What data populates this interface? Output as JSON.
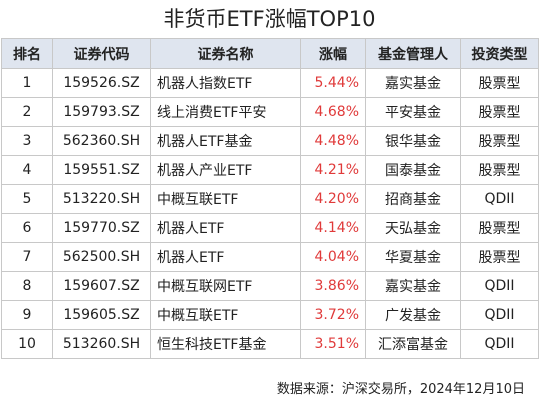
{
  "header": {
    "title": "非货币ETF涨幅TOP10"
  },
  "table": {
    "columns": [
      "排名",
      "证券代码",
      "证券名称",
      "涨幅",
      "基金管理人",
      "投资类型"
    ],
    "rows": [
      [
        "1",
        "159526.SZ",
        "机器人指数ETF",
        "5.44%",
        "嘉实基金",
        "股票型"
      ],
      [
        "2",
        "159793.SZ",
        "线上消费ETF平安",
        "4.68%",
        "平安基金",
        "股票型"
      ],
      [
        "3",
        "562360.SH",
        "机器人ETF基金",
        "4.48%",
        "银华基金",
        "股票型"
      ],
      [
        "4",
        "159551.SZ",
        "机器人产业ETF",
        "4.21%",
        "国泰基金",
        "股票型"
      ],
      [
        "5",
        "513220.SH",
        "中概互联ETF",
        "4.20%",
        "招商基金",
        "QDII"
      ],
      [
        "6",
        "159770.SZ",
        "机器人ETF",
        "4.14%",
        "天弘基金",
        "股票型"
      ],
      [
        "7",
        "562500.SH",
        "机器人ETF",
        "4.04%",
        "华夏基金",
        "股票型"
      ],
      [
        "8",
        "159607.SZ",
        "中概互联网ETF",
        "3.86%",
        "嘉实基金",
        "QDII"
      ],
      [
        "9",
        "159605.SZ",
        "中概互联ETF",
        "3.72%",
        "广发基金",
        "QDII"
      ],
      [
        "10",
        "513260.SH",
        "恒生科技ETF基金",
        "3.51%",
        "汇添富基金",
        "QDII"
      ]
    ]
  },
  "footer": {
    "source": "数据来源：沪深交易所，2024年12月10日"
  }
}
